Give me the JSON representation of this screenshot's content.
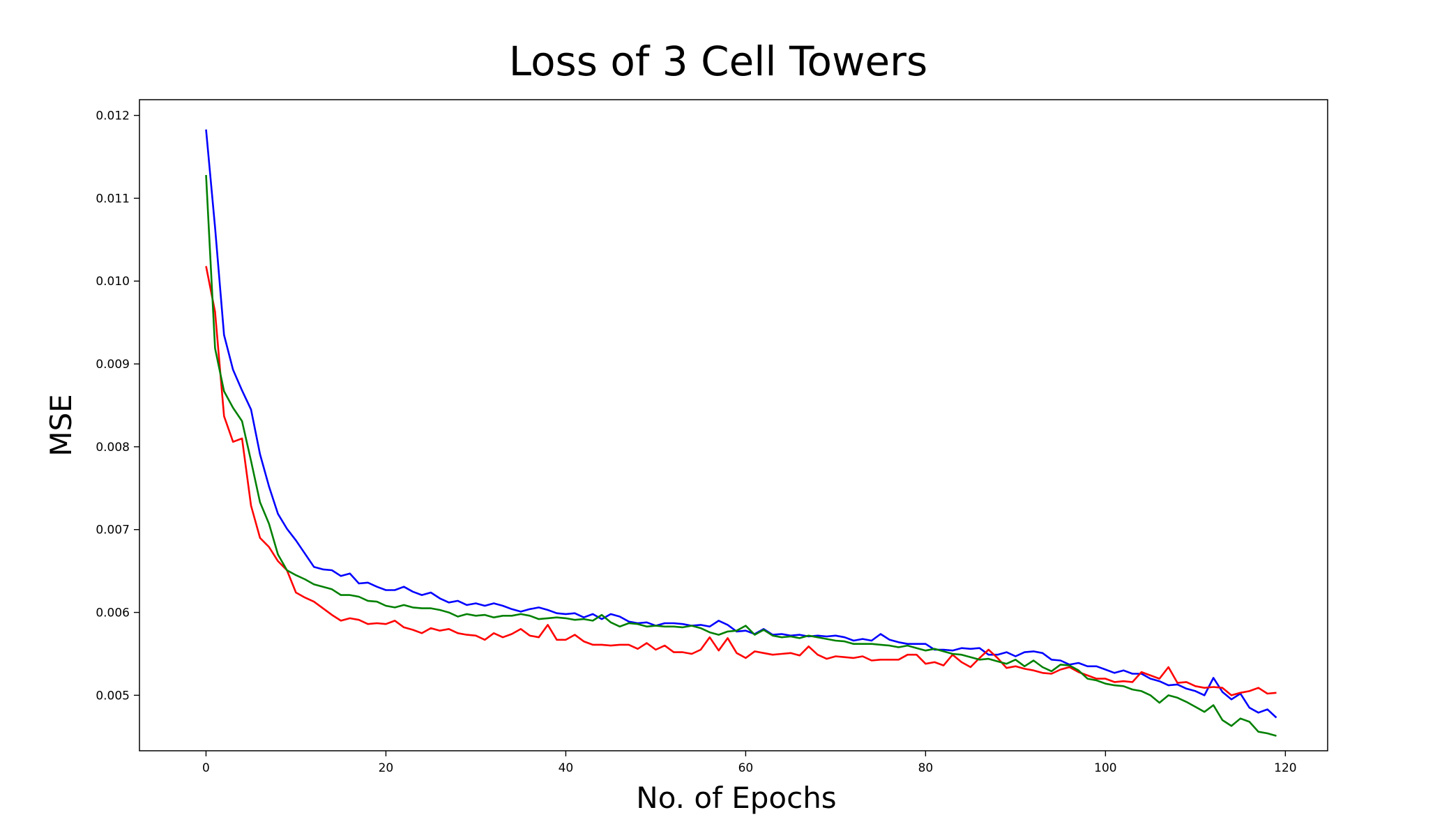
{
  "chart_data": {
    "type": "line",
    "title": "Loss of 3 Cell Towers",
    "xlabel": "No. of Epochs",
    "ylabel": "MSE",
    "xlim": [
      -7.4,
      124.7
    ],
    "ylim": [
      0.00433,
      0.01219
    ],
    "xticks": [
      0,
      20,
      40,
      60,
      80,
      100,
      120
    ],
    "xtick_labels": [
      "0",
      "20",
      "40",
      "60",
      "80",
      "100",
      "120"
    ],
    "yticks": [
      0.005,
      0.006,
      0.007,
      0.008,
      0.009,
      0.01,
      0.011,
      0.012
    ],
    "ytick_labels": [
      "0.005",
      "0.006",
      "0.007",
      "0.008",
      "0.009",
      "0.010",
      "0.011",
      "0.012"
    ],
    "grid": false,
    "legend": false,
    "x_start": 0,
    "series": [
      {
        "color": "#0000ff",
        "values": [
          0.01183,
          0.01065,
          0.00935,
          0.00893,
          0.00868,
          0.00845,
          0.00791,
          0.00752,
          0.00719,
          0.00701,
          0.00687,
          0.00671,
          0.00655,
          0.00652,
          0.00651,
          0.00644,
          0.00647,
          0.00635,
          0.00636,
          0.00631,
          0.00627,
          0.00627,
          0.00631,
          0.00625,
          0.00621,
          0.00624,
          0.00617,
          0.00612,
          0.00614,
          0.00609,
          0.00611,
          0.00608,
          0.00611,
          0.00608,
          0.00604,
          0.00601,
          0.00604,
          0.00606,
          0.00603,
          0.00599,
          0.00598,
          0.00599,
          0.00594,
          0.00598,
          0.00592,
          0.00598,
          0.00595,
          0.00589,
          0.00587,
          0.00588,
          0.00584,
          0.00587,
          0.00587,
          0.00586,
          0.00584,
          0.00585,
          0.00583,
          0.0059,
          0.00585,
          0.00577,
          0.00578,
          0.00574,
          0.0058,
          0.00573,
          0.00574,
          0.00572,
          0.00573,
          0.00571,
          0.00572,
          0.00571,
          0.00572,
          0.0057,
          0.00566,
          0.00568,
          0.00566,
          0.00574,
          0.00567,
          0.00564,
          0.00562,
          0.00562,
          0.00562,
          0.00555,
          0.00555,
          0.00554,
          0.00557,
          0.00556,
          0.00557,
          0.00549,
          0.00549,
          0.00552,
          0.00547,
          0.00552,
          0.00553,
          0.00551,
          0.00543,
          0.00542,
          0.00537,
          0.00539,
          0.00535,
          0.00535,
          0.00531,
          0.00527,
          0.0053,
          0.00526,
          0.00526,
          0.0052,
          0.00517,
          0.00512,
          0.00513,
          0.00508,
          0.00505,
          0.005,
          0.00521,
          0.00504,
          0.00495,
          0.00502,
          0.00485,
          0.00479,
          0.00483,
          0.00473
        ]
      },
      {
        "color": "#ff0000",
        "values": [
          0.01018,
          0.00963,
          0.00837,
          0.00806,
          0.0081,
          0.00729,
          0.0069,
          0.00679,
          0.00662,
          0.00651,
          0.00624,
          0.00618,
          0.00613,
          0.00605,
          0.00597,
          0.0059,
          0.00593,
          0.00591,
          0.00586,
          0.00587,
          0.00586,
          0.0059,
          0.00582,
          0.00579,
          0.00575,
          0.00581,
          0.00578,
          0.0058,
          0.00575,
          0.00573,
          0.00572,
          0.00567,
          0.00575,
          0.0057,
          0.00574,
          0.0058,
          0.00572,
          0.0057,
          0.00585,
          0.00567,
          0.00567,
          0.00573,
          0.00565,
          0.00561,
          0.00561,
          0.0056,
          0.00561,
          0.00561,
          0.00556,
          0.00563,
          0.00555,
          0.0056,
          0.00552,
          0.00552,
          0.0055,
          0.00555,
          0.0057,
          0.00554,
          0.00569,
          0.00551,
          0.00545,
          0.00553,
          0.00551,
          0.00549,
          0.0055,
          0.00551,
          0.00548,
          0.00559,
          0.00549,
          0.00544,
          0.00547,
          0.00546,
          0.00545,
          0.00547,
          0.00542,
          0.00543,
          0.00543,
          0.00543,
          0.00549,
          0.00549,
          0.00538,
          0.0054,
          0.00536,
          0.00549,
          0.0054,
          0.00534,
          0.00545,
          0.00555,
          0.00545,
          0.00533,
          0.00535,
          0.00532,
          0.0053,
          0.00527,
          0.00526,
          0.00531,
          0.00534,
          0.00528,
          0.00524,
          0.0052,
          0.0052,
          0.00516,
          0.00517,
          0.00516,
          0.00528,
          0.00524,
          0.0052,
          0.00534,
          0.00515,
          0.00516,
          0.00511,
          0.00509,
          0.0051,
          0.00509,
          0.005,
          0.00503,
          0.00505,
          0.00509,
          0.00502,
          0.00503
        ]
      },
      {
        "color": "#008000",
        "values": [
          0.01128,
          0.00919,
          0.00867,
          0.00847,
          0.00831,
          0.00783,
          0.00733,
          0.00707,
          0.0067,
          0.00651,
          0.00645,
          0.0064,
          0.00634,
          0.00631,
          0.00628,
          0.00621,
          0.00621,
          0.00619,
          0.00614,
          0.00613,
          0.00608,
          0.00606,
          0.00609,
          0.00606,
          0.00605,
          0.00605,
          0.00603,
          0.006,
          0.00595,
          0.00598,
          0.00596,
          0.00597,
          0.00594,
          0.00596,
          0.00596,
          0.00598,
          0.00596,
          0.00592,
          0.00593,
          0.00594,
          0.00593,
          0.00591,
          0.00592,
          0.0059,
          0.00597,
          0.00588,
          0.00583,
          0.00587,
          0.00586,
          0.00583,
          0.00584,
          0.00583,
          0.00583,
          0.00582,
          0.00584,
          0.00581,
          0.00576,
          0.00573,
          0.00577,
          0.00578,
          0.00584,
          0.00573,
          0.00579,
          0.00572,
          0.0057,
          0.00571,
          0.00569,
          0.00572,
          0.0057,
          0.00568,
          0.00566,
          0.00565,
          0.00562,
          0.00562,
          0.00562,
          0.00561,
          0.0056,
          0.00558,
          0.0056,
          0.00557,
          0.00554,
          0.00556,
          0.00553,
          0.0055,
          0.00549,
          0.00546,
          0.00543,
          0.00544,
          0.00541,
          0.00538,
          0.00543,
          0.00535,
          0.00542,
          0.00534,
          0.00529,
          0.00537,
          0.00536,
          0.0053,
          0.0052,
          0.00518,
          0.00514,
          0.00512,
          0.00511,
          0.00507,
          0.00505,
          0.005,
          0.00491,
          0.005,
          0.00497,
          0.00492,
          0.00486,
          0.0048,
          0.00488,
          0.0047,
          0.00463,
          0.00472,
          0.00468,
          0.00456,
          0.00454,
          0.00451
        ]
      }
    ]
  }
}
